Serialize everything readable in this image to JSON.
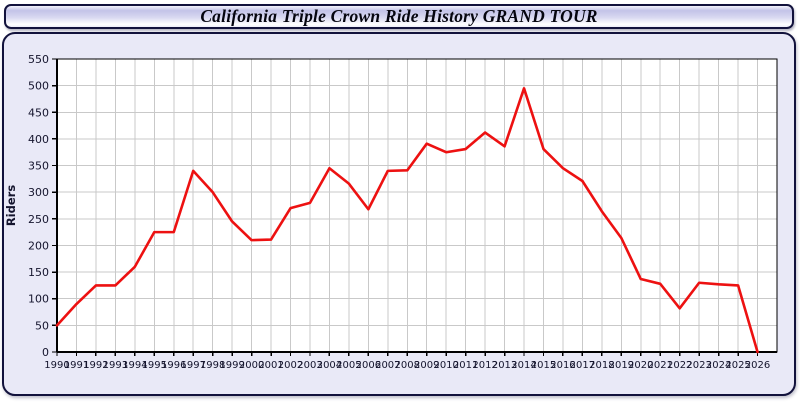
{
  "page": {
    "title": "California Triple Crown Ride History GRAND TOUR"
  },
  "chart_data": {
    "type": "line",
    "title": "California Triple Crown Ride History GRAND TOUR",
    "xlabel": "",
    "ylabel": "Riders",
    "legend": "none",
    "grid": true,
    "ylim": [
      0,
      550
    ],
    "yticks": [
      0,
      50,
      100,
      150,
      200,
      250,
      300,
      350,
      400,
      450,
      500,
      550
    ],
    "x": [
      1990,
      1991,
      1992,
      1993,
      1994,
      1995,
      1996,
      1997,
      1998,
      1999,
      2000,
      2001,
      2002,
      2003,
      2004,
      2005,
      2006,
      2007,
      2008,
      2009,
      2010,
      2011,
      2012,
      2013,
      2014,
      2015,
      2016,
      2017,
      2018,
      2019,
      2020,
      2021,
      2022,
      2023,
      2024,
      2025,
      2026
    ],
    "values": [
      50,
      90,
      125,
      125,
      160,
      225,
      225,
      340,
      300,
      245,
      210,
      211,
      270,
      280,
      345,
      316,
      268,
      340,
      341,
      391,
      375,
      381,
      412,
      386,
      495,
      381,
      345,
      321,
      264,
      214,
      137,
      128,
      82,
      130,
      127,
      125,
      0
    ],
    "colors": {
      "line": "#ed1111",
      "grid": "#c9c9c9",
      "axis": "#000000",
      "plot_bg": "#ffffff",
      "panel_bg": "#e9e9f7",
      "border": "#12123c",
      "tick_label": "#14142d"
    }
  }
}
